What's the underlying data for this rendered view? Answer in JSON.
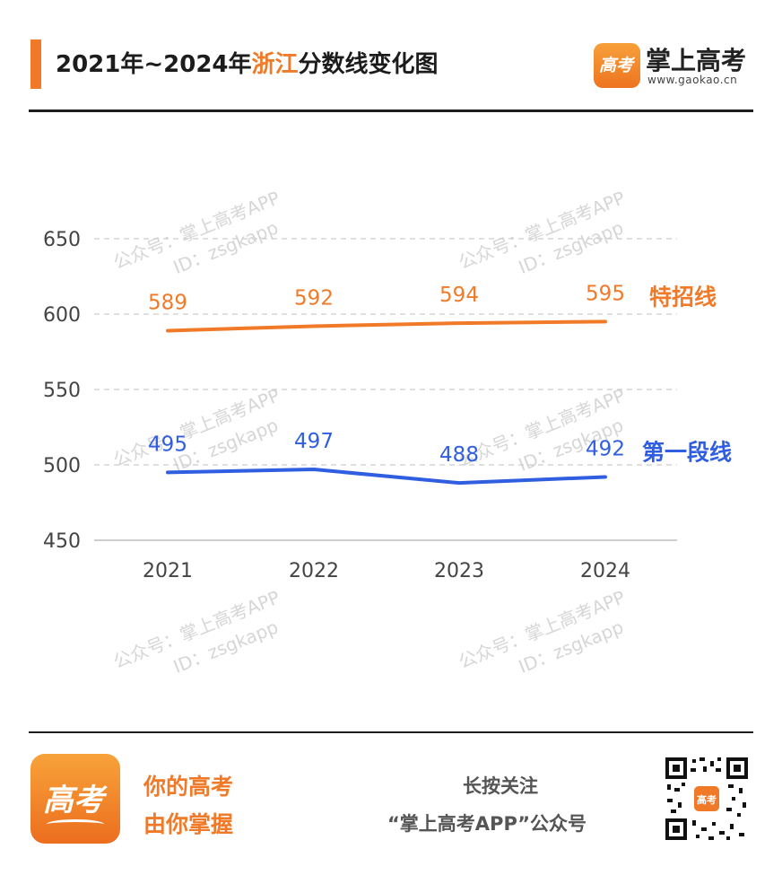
{
  "header": {
    "title_prefix": "2021年~2024年",
    "title_highlight": "浙江",
    "title_suffix": "分数线变化图",
    "brand_logo_text": "高考",
    "brand_name": "掌上高考",
    "brand_url": "www.gaokao.cn"
  },
  "watermark": {
    "line1": "公众号：掌上高考APP",
    "line2": "ID：zsgkapp"
  },
  "colors": {
    "accent": "#f07a28",
    "series_special": "#f07a28",
    "series_first": "#2f5ee0",
    "grid": "#cccccc"
  },
  "chart_data": {
    "type": "line",
    "x": [
      "2021",
      "2022",
      "2023",
      "2024"
    ],
    "ylim": [
      450,
      650
    ],
    "yticks": [
      450,
      500,
      550,
      600,
      650
    ],
    "grid": true,
    "legend": "right-end labels",
    "series": [
      {
        "name": "特招线",
        "values": [
          589,
          592,
          594,
          595
        ],
        "color": "#f07a28"
      },
      {
        "name": "第一段线",
        "values": [
          495,
          497,
          488,
          492
        ],
        "color": "#2f5ee0"
      }
    ]
  },
  "footer": {
    "logo_text": "高考",
    "slogan_line1": "你的高考",
    "slogan_line2": "由你掌握",
    "follow_line1": "长按关注",
    "follow_line2": "“掌上高考APP”公众号",
    "qr_icon": "qr-code-icon"
  }
}
